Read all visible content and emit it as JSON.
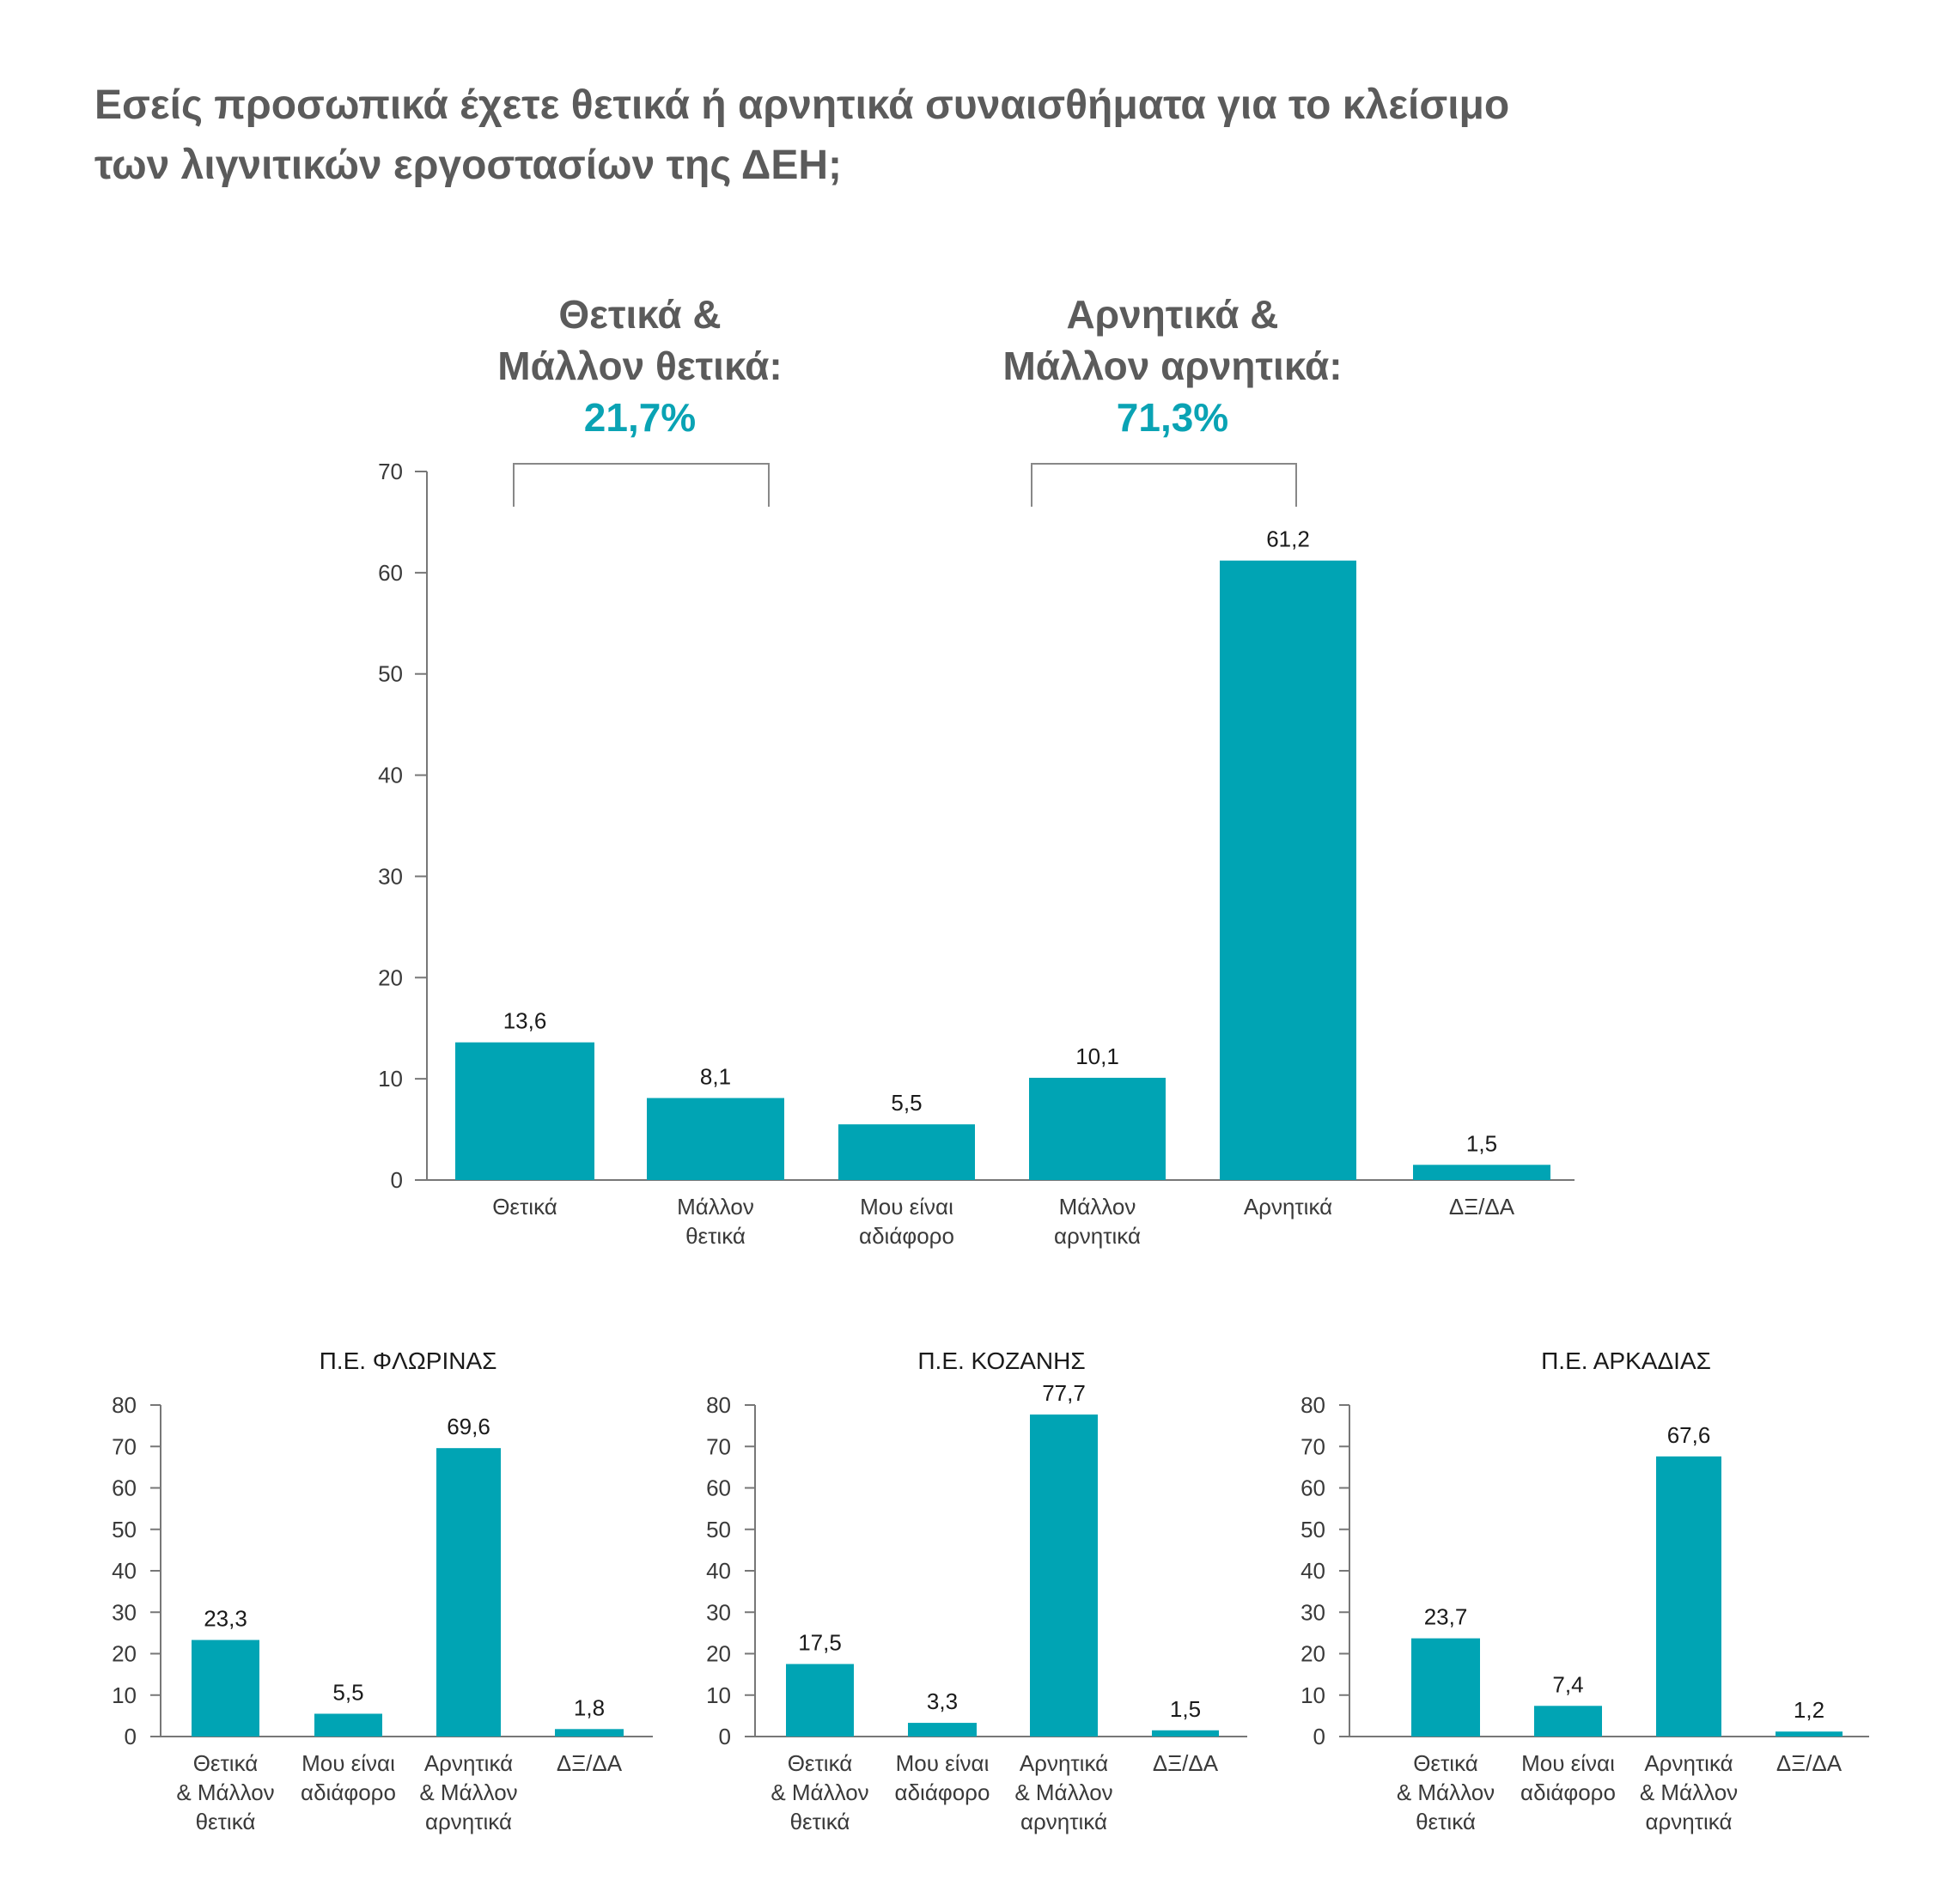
{
  "title_lines": [
    "Εσείς προσωπικά έχετε θετικά ή αρνητικά συναισθήματα για το κλείσιμο",
    "των λιγνιτικών εργοστασίων της ΔΕΗ;"
  ],
  "groups": {
    "positive": {
      "line1": "Θετικά &",
      "line2": "Μάλλον θετικά:",
      "pct": "21,7%"
    },
    "negative": {
      "line1": "Αρνητικά &",
      "line2": "Μάλλον αρνητικά:",
      "pct": "71,3%"
    }
  },
  "colors": {
    "bar": "#00a4b4",
    "axis": "#777777",
    "accent": "#0aa3b4"
  },
  "chart_data": [
    {
      "type": "bar",
      "title": "",
      "categories": [
        [
          "Θετικά"
        ],
        [
          "Μάλλον",
          "θετικά"
        ],
        [
          "Μου είναι",
          "αδιάφορο"
        ],
        [
          "Μάλλον",
          "αρνητικά"
        ],
        [
          "Αρνητικά"
        ],
        [
          "ΔΞ/ΔΑ"
        ]
      ],
      "values": [
        13.6,
        8.1,
        5.5,
        10.1,
        61.2,
        1.5
      ],
      "value_labels": [
        "13,6",
        "8,1",
        "5,5",
        "10,1",
        "61,2",
        "1,5"
      ],
      "ylim": [
        0,
        70
      ],
      "yticks": [
        0,
        10,
        20,
        30,
        40,
        50,
        60,
        70
      ],
      "xlabel": "",
      "ylabel": "",
      "grid": false,
      "legend": "none"
    },
    {
      "type": "bar",
      "title": "Π.Ε. ΦΛΩΡΙΝΑΣ",
      "categories": [
        [
          "Θετικά",
          "& Μάλλον",
          "θετικά"
        ],
        [
          "Μου είναι",
          "αδιάφορο"
        ],
        [
          "Αρνητικά",
          "& Μάλλον",
          "αρνητικά"
        ],
        [
          "ΔΞ/ΔΑ"
        ]
      ],
      "values": [
        23.3,
        5.5,
        69.6,
        1.8
      ],
      "value_labels": [
        "23,3",
        "5,5",
        "69,6",
        "1,8"
      ],
      "ylim": [
        0,
        80
      ],
      "yticks": [
        0,
        10,
        20,
        30,
        40,
        50,
        60,
        70,
        80
      ],
      "xlabel": "",
      "ylabel": "",
      "grid": false,
      "legend": "none"
    },
    {
      "type": "bar",
      "title": "Π.Ε. ΚΟΖΑΝΗΣ",
      "categories": [
        [
          "Θετικά",
          "& Μάλλον",
          "θετικά"
        ],
        [
          "Μου είναι",
          "αδιάφορο"
        ],
        [
          "Αρνητικά",
          "& Μάλλον",
          "αρνητικά"
        ],
        [
          "ΔΞ/ΔΑ"
        ]
      ],
      "values": [
        17.5,
        3.3,
        77.7,
        1.5
      ],
      "value_labels": [
        "17,5",
        "3,3",
        "77,7",
        "1,5"
      ],
      "ylim": [
        0,
        80
      ],
      "yticks": [
        0,
        10,
        20,
        30,
        40,
        50,
        60,
        70,
        80
      ],
      "xlabel": "",
      "ylabel": "",
      "grid": false,
      "legend": "none"
    },
    {
      "type": "bar",
      "title": "Π.Ε. ΑΡΚΑΔΙΑΣ",
      "categories": [
        [
          "Θετικά",
          "& Μάλλον",
          "θετικά"
        ],
        [
          "Μου είναι",
          "αδιάφορο"
        ],
        [
          "Αρνητικά",
          "& Μάλλον",
          "αρνητικά"
        ],
        [
          "ΔΞ/ΔΑ"
        ]
      ],
      "values": [
        23.7,
        7.4,
        67.6,
        1.2
      ],
      "value_labels": [
        "23,7",
        "7,4",
        "67,6",
        "1,2"
      ],
      "ylim": [
        0,
        80
      ],
      "yticks": [
        0,
        10,
        20,
        30,
        40,
        50,
        60,
        70,
        80
      ],
      "xlabel": "",
      "ylabel": "",
      "grid": false,
      "legend": "none"
    }
  ]
}
